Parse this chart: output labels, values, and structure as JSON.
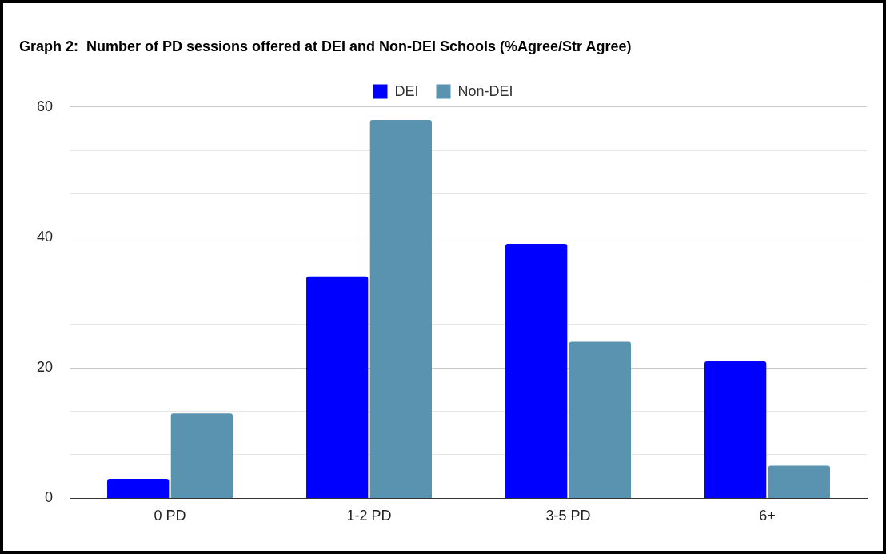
{
  "chart_data": {
    "type": "bar",
    "title": "Graph 2:  Number of PD sessions offered at DEI and Non-DEI Schools (%Agree/Str Agree)",
    "categories": [
      "0 PD",
      "1-2 PD",
      "3-5 PD",
      "6+"
    ],
    "series": [
      {
        "name": "DEI",
        "color": "#0000ff",
        "values": [
          3,
          34,
          39,
          21
        ]
      },
      {
        "name": "Non-DEI",
        "color": "#5a93b0",
        "values": [
          13,
          58,
          24,
          5
        ]
      }
    ],
    "ylim": [
      0,
      60
    ],
    "yticks": [
      0,
      {
        "value": 6.67,
        "label": null
      },
      {
        "value": 13.33,
        "label": null
      },
      20,
      {
        "value": 26.67,
        "label": null
      },
      {
        "value": 33.33,
        "label": null
      },
      40,
      {
        "value": 46.67,
        "label": null
      },
      {
        "value": 53.33,
        "label": null
      },
      60
    ],
    "grid": "y",
    "legend": "top"
  }
}
